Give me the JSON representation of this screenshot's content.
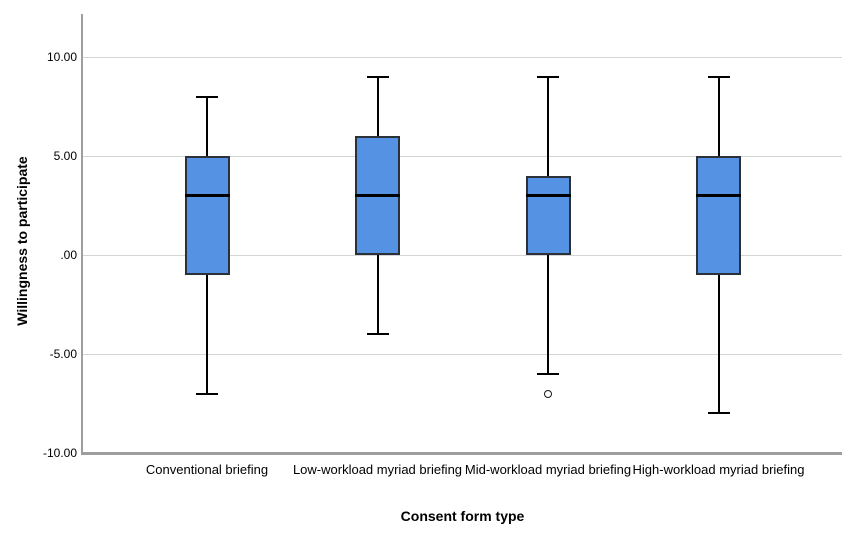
{
  "chart_data": {
    "type": "boxplot",
    "title": "",
    "xlabel": "Consent form type",
    "ylabel": "Willingness to participate",
    "ylim": [
      -10,
      10
    ],
    "yticks": [
      10,
      5,
      0,
      -5,
      -10
    ],
    "ytick_labels": [
      "10.00",
      "5.00",
      ".00",
      "-5.00",
      "-10.00"
    ],
    "grid": "horizontal gridlines at each y tick, no top/right border",
    "legend": "none",
    "categories": [
      "Conventional briefing",
      "Low-workload myriad briefing",
      "Mid-workload myriad briefing",
      "High-workload myriad briefing"
    ],
    "series": [
      {
        "whisker_low": -7,
        "q1": -1,
        "median": 3,
        "q3": 5,
        "whisker_high": 8,
        "outliers": []
      },
      {
        "whisker_low": -4,
        "q1": 0,
        "median": 3,
        "q3": 6,
        "whisker_high": 9,
        "outliers": []
      },
      {
        "whisker_low": -6,
        "q1": 0,
        "median": 3,
        "q3": 4,
        "whisker_high": 9,
        "outliers": [
          -7
        ]
      },
      {
        "whisker_low": -8,
        "q1": -1,
        "median": 3,
        "q3": 5,
        "whisker_high": 9,
        "outliers": []
      }
    ],
    "colors": {
      "box_fill": "#5592E4",
      "box_border": "#2A3139",
      "median": "#000000",
      "whisker": "#000000",
      "outlier_stroke": "#1A1A1A",
      "gridline": "#D4D4D4",
      "axis_line": "#9E9E9E",
      "text": "#000000"
    }
  }
}
